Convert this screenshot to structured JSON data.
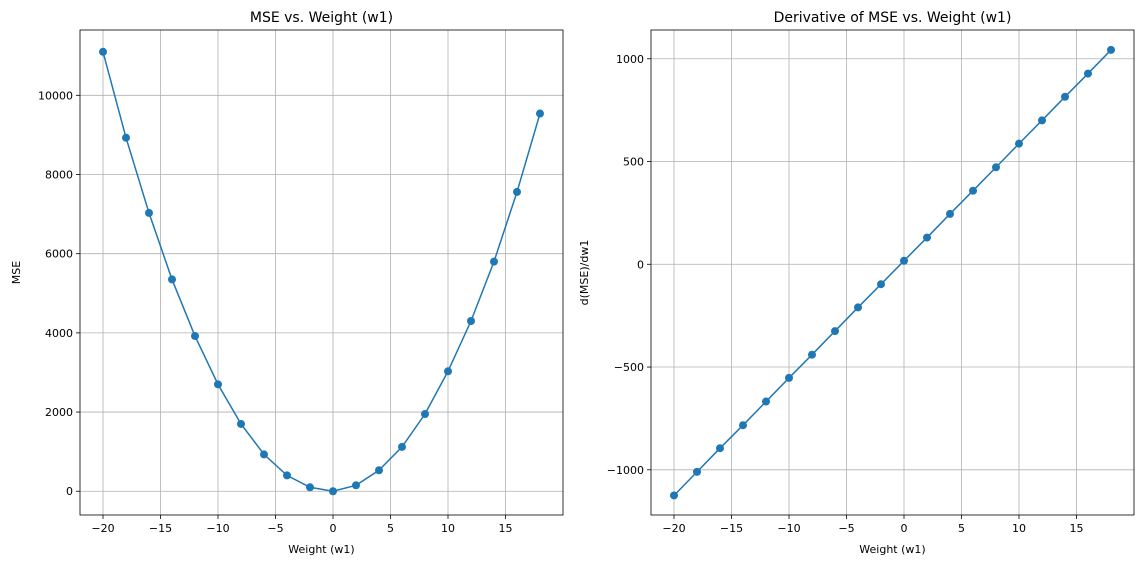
{
  "chart_data": [
    {
      "type": "line",
      "title": "MSE vs. Weight (w1)",
      "xlabel": "Weight (w1)",
      "ylabel": "MSE",
      "xlim": [
        -22,
        20
      ],
      "ylim": [
        -600,
        11650
      ],
      "xticks": [
        -20,
        -15,
        -10,
        -5,
        0,
        5,
        10,
        15
      ],
      "xtick_labels": [
        "−20",
        "−15",
        "−10",
        "−5",
        "0",
        "5",
        "10",
        "15"
      ],
      "yticks": [
        0,
        2000,
        4000,
        6000,
        8000,
        10000
      ],
      "ytick_labels": [
        "0",
        "2000",
        "4000",
        "6000",
        "8000",
        "10000"
      ],
      "grid": true,
      "color": "#1f77b4",
      "x": [
        -20,
        -18,
        -16,
        -14,
        -12,
        -10,
        -8,
        -6,
        -4,
        -2,
        0,
        2,
        4,
        6,
        8,
        10,
        12,
        14,
        16,
        18
      ],
      "y": [
        11100,
        8930,
        7030,
        5350,
        3920,
        2700,
        1700,
        930,
        400,
        100,
        0,
        150,
        530,
        1120,
        1950,
        3030,
        4300,
        5800,
        7560,
        9540
      ]
    },
    {
      "type": "line",
      "title": "Derivative of MSE vs. Weight (w1)",
      "xlabel": "Weight (w1)",
      "ylabel": "d(MSE)/dw1",
      "xlim": [
        -22,
        20
      ],
      "ylim": [
        -1220,
        1140
      ],
      "xticks": [
        -20,
        -15,
        -10,
        -5,
        0,
        5,
        10,
        15
      ],
      "xtick_labels": [
        "−20",
        "−15",
        "−10",
        "−5",
        "0",
        "5",
        "10",
        "15"
      ],
      "yticks": [
        -1000,
        -500,
        0,
        500,
        1000
      ],
      "ytick_labels": [
        "−1000",
        "−500",
        "0",
        "500",
        "1000"
      ],
      "grid": true,
      "color": "#1f77b4",
      "x": [
        -20,
        -18,
        -16,
        -14,
        -12,
        -10,
        -8,
        -6,
        -4,
        -2,
        0,
        2,
        4,
        6,
        8,
        10,
        12,
        14,
        16,
        18
      ],
      "y": [
        -1125,
        -1010,
        -895,
        -783,
        -668,
        -553,
        -440,
        -325,
        -210,
        -97,
        17,
        130,
        245,
        358,
        472,
        587,
        700,
        815,
        928,
        1043
      ]
    }
  ]
}
